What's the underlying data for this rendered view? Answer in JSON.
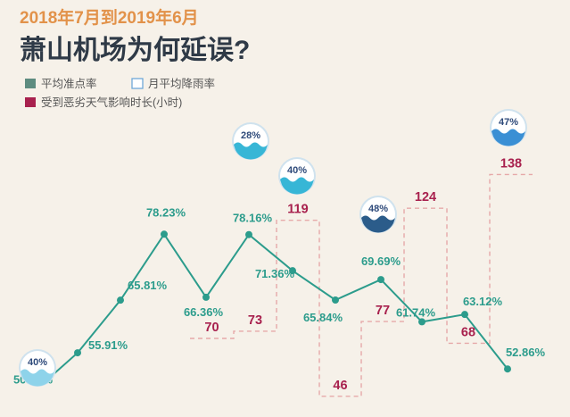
{
  "header": {
    "subtitle": "2018年7月到2019年6月",
    "title": "萧山机场为何延误?"
  },
  "legend": [
    {
      "key": "on_time",
      "label": "平均准点率",
      "color": "#5e8c80",
      "style": "filled"
    },
    {
      "key": "rain",
      "label": "月平均降雨率",
      "color": "#6fa8d8",
      "style": "outline"
    },
    {
      "key": "weather",
      "label": "受到恶劣天气影响时长(小时)",
      "color": "#a8214e",
      "style": "filled"
    }
  ],
  "colors": {
    "line": "#2c9c8c",
    "hours": "#a8214e",
    "dashed": "#e6a9a9",
    "background": "#f6f1e9",
    "subtitle": "#e2924a",
    "title": "#2f3a47"
  },
  "chart_data": {
    "type": "line",
    "series": [
      {
        "name": "平均准点率",
        "values": [
          50.84,
          55.91,
          65.81,
          78.23,
          66.36,
          78.16,
          71.36,
          65.84,
          69.69,
          61.74,
          63.12,
          52.86
        ],
        "labels": [
          "50.84%",
          "55.91%",
          "65.81%",
          "78.23%",
          "66.36%",
          "78.16%",
          "71.36%",
          "65.84%",
          "69.69%",
          "61.74%",
          "63.12%",
          "52.86%"
        ]
      }
    ],
    "weather_hours": [
      {
        "value": 70,
        "label": "70"
      },
      {
        "value": 73,
        "label": "73"
      },
      {
        "value": 119,
        "label": "119"
      },
      {
        "value": 46,
        "label": "46"
      },
      {
        "value": 77,
        "label": "77"
      },
      {
        "value": 124,
        "label": "124"
      },
      {
        "value": 68,
        "label": "68"
      },
      {
        "value": 138,
        "label": "138"
      }
    ],
    "rain_rates": [
      {
        "value": 40,
        "label": "40%"
      },
      {
        "value": 28,
        "label": "28%"
      },
      {
        "value": 40,
        "label": "40%"
      },
      {
        "value": 48,
        "label": "48%"
      },
      {
        "value": 47,
        "label": "47%"
      }
    ],
    "ylim": [
      45,
      85
    ],
    "grid": false
  }
}
